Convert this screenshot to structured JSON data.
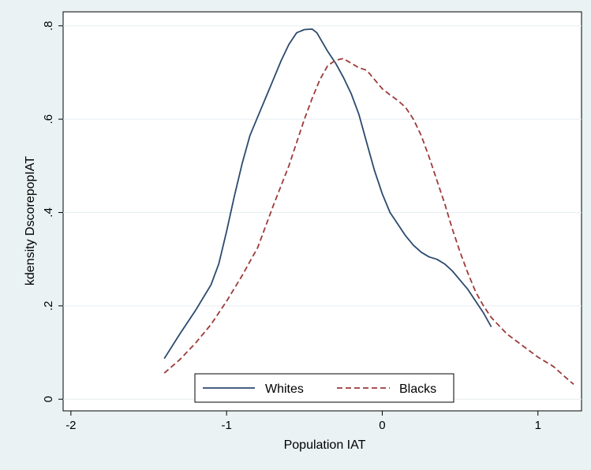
{
  "chart_data": {
    "type": "line",
    "title": "",
    "xlabel": "Population IAT",
    "ylabel": "kdensity DscorepopIAT",
    "xlim": [
      -2.05,
      1.28
    ],
    "ylim": [
      -0.025,
      0.83
    ],
    "x_ticks": [
      {
        "value": -2,
        "label": "-2"
      },
      {
        "value": -1,
        "label": "-1"
      },
      {
        "value": 0,
        "label": "0"
      },
      {
        "value": 1,
        "label": "1"
      }
    ],
    "y_ticks": [
      {
        "value": 0,
        "label": "0"
      },
      {
        "value": 0.2,
        "label": ".2"
      },
      {
        "value": 0.4,
        "label": ".4"
      },
      {
        "value": 0.6,
        "label": ".6"
      },
      {
        "value": 0.8,
        "label": ".8"
      }
    ],
    "grid": "horizontal",
    "legend_position": "bottom-center",
    "colors": {
      "background": "#eaf2f3",
      "plot_area": "#ffffff",
      "grid": "#e6eef0",
      "whites": "#2b4a6e",
      "blacks": "#9c3a3a"
    },
    "series": [
      {
        "name": "Whites",
        "style": "solid",
        "color": "#2b4a6e",
        "x": [
          -1.4,
          -1.3,
          -1.2,
          -1.1,
          -1.05,
          -1.0,
          -0.95,
          -0.9,
          -0.85,
          -0.8,
          -0.75,
          -0.7,
          -0.65,
          -0.6,
          -0.55,
          -0.5,
          -0.45,
          -0.42,
          -0.35,
          -0.3,
          -0.25,
          -0.2,
          -0.15,
          -0.1,
          -0.05,
          0.0,
          0.05,
          0.1,
          0.15,
          0.2,
          0.25,
          0.3,
          0.35,
          0.4,
          0.45,
          0.5,
          0.55,
          0.6,
          0.65,
          0.7
        ],
        "y": [
          0.087,
          0.14,
          0.19,
          0.245,
          0.29,
          0.36,
          0.435,
          0.505,
          0.565,
          0.605,
          0.645,
          0.685,
          0.725,
          0.76,
          0.785,
          0.792,
          0.793,
          0.785,
          0.745,
          0.72,
          0.69,
          0.655,
          0.61,
          0.55,
          0.49,
          0.44,
          0.4,
          0.375,
          0.35,
          0.33,
          0.315,
          0.305,
          0.3,
          0.29,
          0.275,
          0.255,
          0.235,
          0.21,
          0.185,
          0.155
        ]
      },
      {
        "name": "Blacks",
        "style": "dashed",
        "color": "#9c3a3a",
        "x": [
          -1.4,
          -1.3,
          -1.2,
          -1.1,
          -1.0,
          -0.9,
          -0.8,
          -0.7,
          -0.6,
          -0.5,
          -0.45,
          -0.4,
          -0.35,
          -0.3,
          -0.25,
          -0.2,
          -0.15,
          -0.1,
          -0.05,
          0.0,
          0.05,
          0.1,
          0.15,
          0.2,
          0.25,
          0.3,
          0.35,
          0.4,
          0.45,
          0.5,
          0.55,
          0.6,
          0.65,
          0.7,
          0.8,
          0.9,
          1.0,
          1.1,
          1.2,
          1.23
        ],
        "y": [
          0.056,
          0.085,
          0.12,
          0.16,
          0.21,
          0.265,
          0.325,
          0.415,
          0.5,
          0.6,
          0.645,
          0.685,
          0.715,
          0.726,
          0.73,
          0.72,
          0.71,
          0.705,
          0.685,
          0.665,
          0.652,
          0.64,
          0.625,
          0.6,
          0.565,
          0.52,
          0.47,
          0.42,
          0.365,
          0.315,
          0.27,
          0.23,
          0.2,
          0.175,
          0.14,
          0.115,
          0.09,
          0.07,
          0.04,
          0.032
        ]
      }
    ]
  }
}
